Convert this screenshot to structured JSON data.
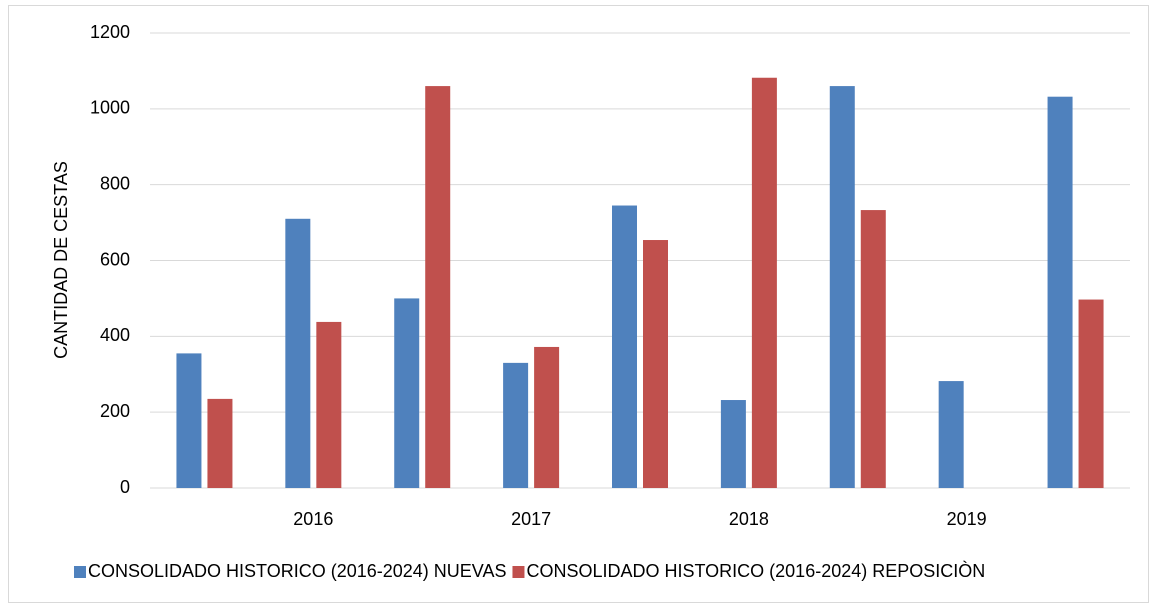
{
  "chart_data": {
    "type": "bar",
    "categories": [
      null,
      "2016",
      null,
      "2017",
      null,
      "2018",
      null,
      "2019",
      null
    ],
    "series": [
      {
        "name": "CONSOLIDADO HISTORICO (2016-2024) NUEVAS",
        "color": "#4f81bd",
        "values": [
          355,
          710,
          500,
          330,
          745,
          232,
          1060,
          282,
          1032
        ]
      },
      {
        "name": "CONSOLIDADO HISTORICO (2016-2024) REPOSICIÒN",
        "color": "#c0504d",
        "values": [
          235,
          438,
          1060,
          372,
          654,
          1082,
          733,
          null,
          497
        ]
      }
    ],
    "ylabel": "CANTIDAD DE CESTAS",
    "ylim": [
      0,
      1200
    ],
    "yticks": [
      0,
      200,
      400,
      600,
      800,
      1000,
      1200
    ],
    "grid": true,
    "legend": "bottom"
  }
}
